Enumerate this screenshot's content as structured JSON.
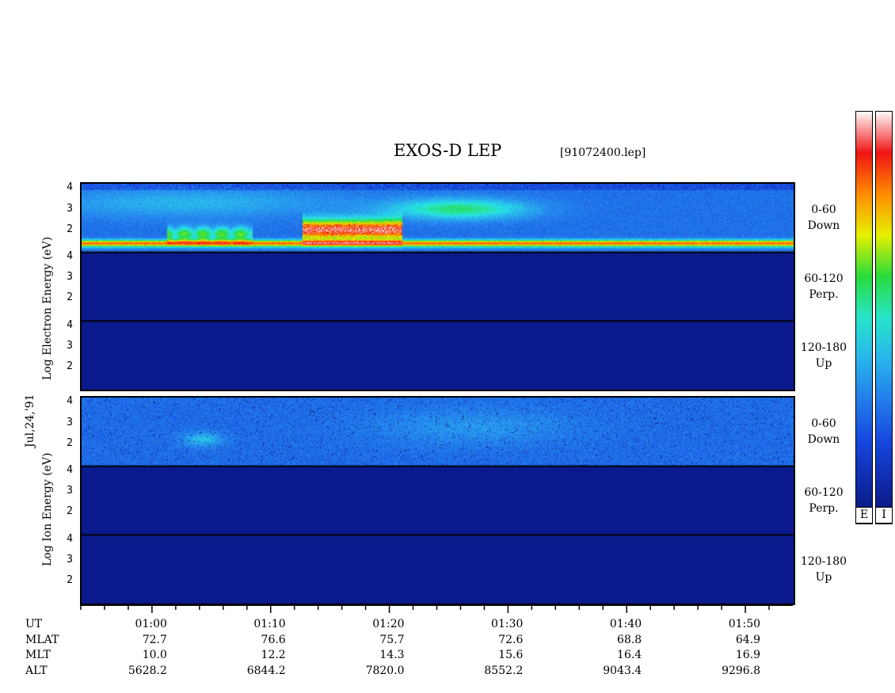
{
  "title": "EXOS-D LEP",
  "file": "[91072400.lep]",
  "date_label": "Jul,24,'91",
  "electron_axis_label": "Log  Electron  Energy (eV)",
  "ion_axis_label": "Log  Ion  Energy (eV)",
  "colors": {
    "background": "#ffffff",
    "panel_base": "#0a1a8c"
  },
  "colorbars": [
    {
      "label": "E"
    },
    {
      "label": "I"
    }
  ],
  "chart_data": {
    "type": "heatmap",
    "ylim": [
      1,
      4
    ],
    "yticks": [
      "4",
      "3",
      "2"
    ],
    "xlim": [
      "00:54",
      "01:54"
    ],
    "panels": [
      {
        "species": "Electron",
        "pitch_angle": "0-60",
        "direction": "Down"
      },
      {
        "species": "Electron",
        "pitch_angle": "60-120",
        "direction": "Perp."
      },
      {
        "species": "Electron",
        "pitch_angle": "120-180",
        "direction": "Up"
      },
      {
        "species": "Ion",
        "pitch_angle": "0-60",
        "direction": "Down"
      },
      {
        "species": "Ion",
        "pitch_angle": "60-120",
        "direction": "Perp."
      },
      {
        "species": "Ion",
        "pitch_angle": "120-180",
        "direction": "Up"
      }
    ],
    "ephemeris": {
      "row_labels": [
        "UT",
        "MLAT",
        "MLT",
        "ALT"
      ],
      "columns": [
        {
          "UT": "01:00",
          "MLAT": "72.7",
          "MLT": "10.0",
          "ALT": "5628.2"
        },
        {
          "UT": "01:10",
          "MLAT": "76.6",
          "MLT": "12.2",
          "ALT": "6844.2"
        },
        {
          "UT": "01:20",
          "MLAT": "75.7",
          "MLT": "14.3",
          "ALT": "7820.0"
        },
        {
          "UT": "01:30",
          "MLAT": "72.6",
          "MLT": "15.6",
          "ALT": "8552.2"
        },
        {
          "UT": "01:40",
          "MLAT": "68.8",
          "MLT": "16.4",
          "ALT": "9043.4"
        },
        {
          "UT": "01:50",
          "MLAT": "64.9",
          "MLT": "16.9",
          "ALT": "9296.8"
        }
      ]
    }
  }
}
